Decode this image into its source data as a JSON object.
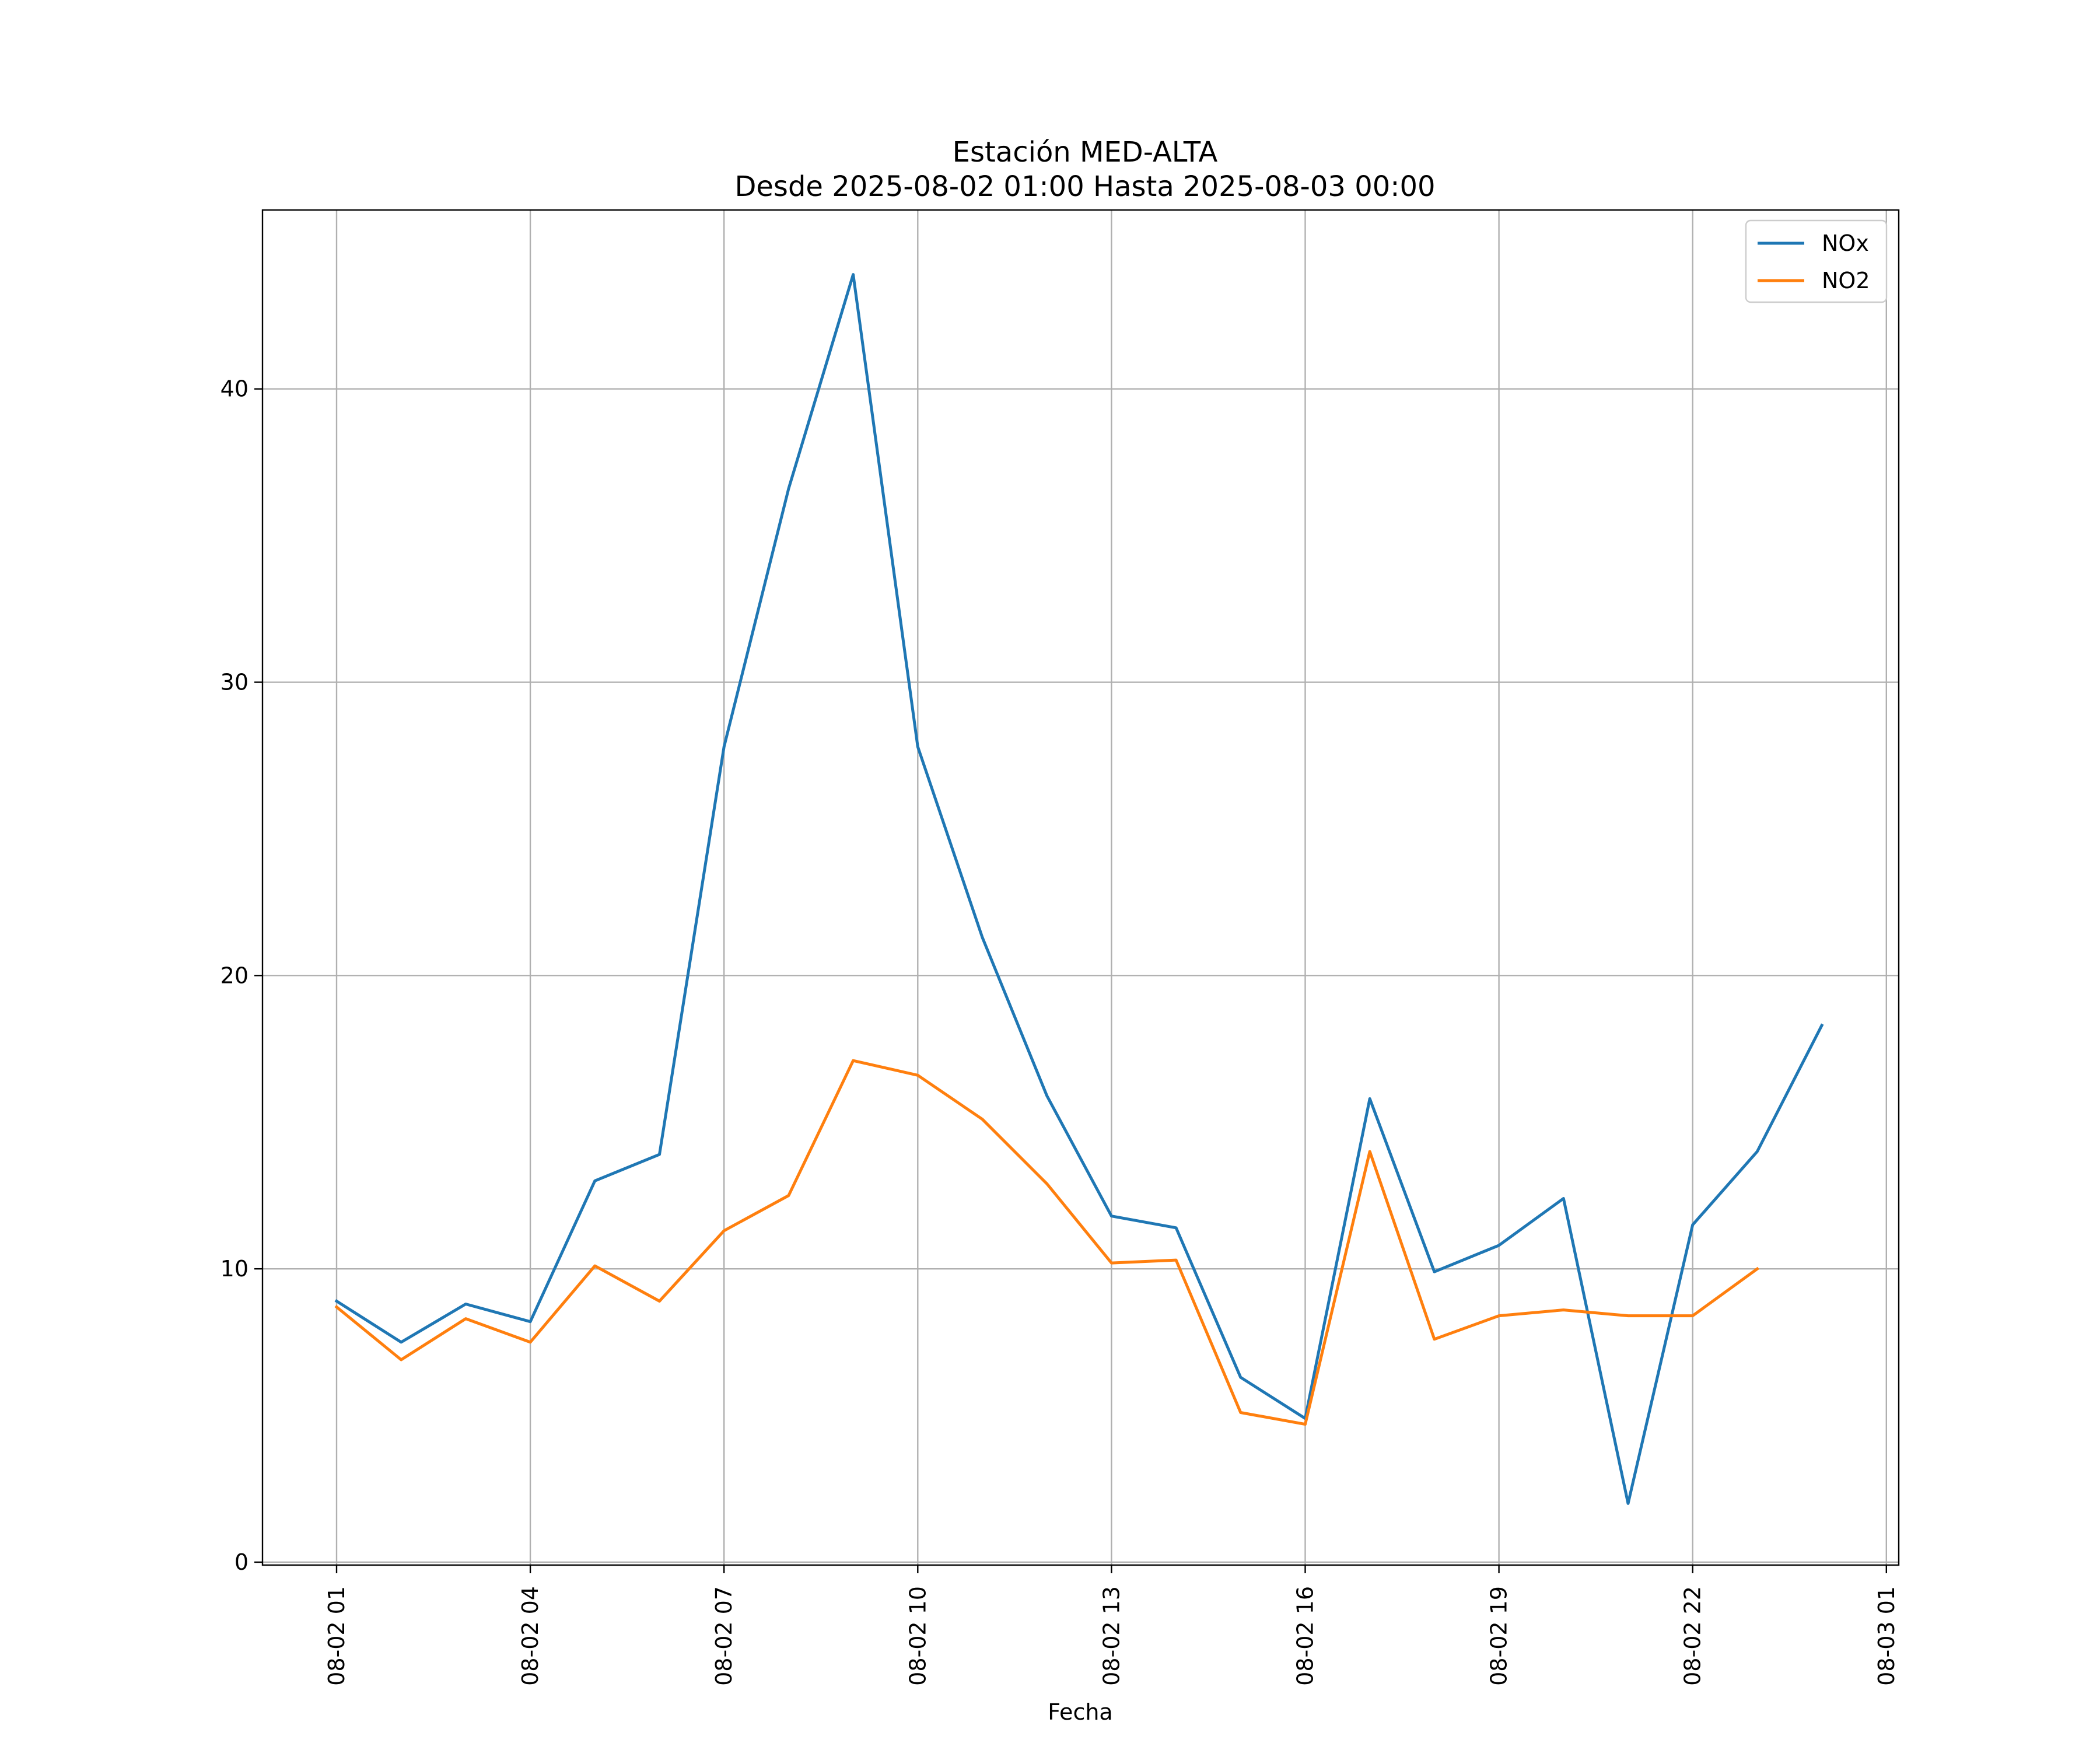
{
  "chart_data": {
    "type": "line",
    "title": "Estación MED-ALTA",
    "subtitle": "Desde 2025-08-02 01:00 Hasta 2025-08-03 00:00",
    "xlabel": "Fecha",
    "ylabel": "",
    "x": [
      "08-02 01",
      "08-02 02",
      "08-02 03",
      "08-02 04",
      "08-02 05",
      "08-02 06",
      "08-02 07",
      "08-02 08",
      "08-02 09",
      "08-02 10",
      "08-02 11",
      "08-02 12",
      "08-02 13",
      "08-02 14",
      "08-02 15",
      "08-02 16",
      "08-02 17",
      "08-02 18",
      "08-02 19",
      "08-02 20",
      "08-02 21",
      "08-02 22",
      "08-02 23",
      "08-03 00"
    ],
    "x_ticks": [
      "08-02 01",
      "08-02 04",
      "08-02 07",
      "08-02 10",
      "08-02 13",
      "08-02 16",
      "08-02 19",
      "08-02 22",
      "08-03 01"
    ],
    "y_ticks": [
      0,
      10,
      20,
      30,
      40
    ],
    "ylim": [
      -0.1,
      46.1
    ],
    "grid": true,
    "legend_position": "top-right",
    "series": [
      {
        "name": "NOx",
        "color": "#1f77b4",
        "values": [
          8.9,
          7.5,
          8.8,
          8.2,
          13.0,
          13.9,
          27.8,
          36.6,
          43.9,
          27.8,
          21.3,
          15.9,
          11.8,
          11.4,
          6.3,
          4.9,
          15.8,
          9.9,
          10.8,
          12.4,
          2.0,
          11.5,
          14.0,
          18.3
        ]
      },
      {
        "name": "NO2",
        "color": "#ff7f0e",
        "values": [
          8.7,
          6.9,
          8.3,
          7.5,
          10.1,
          8.9,
          11.3,
          12.5,
          17.1,
          16.6,
          15.1,
          12.9,
          10.2,
          10.3,
          5.1,
          4.7,
          14.0,
          7.6,
          8.4,
          8.6,
          8.4,
          8.4,
          10.0,
          null
        ]
      }
    ]
  }
}
